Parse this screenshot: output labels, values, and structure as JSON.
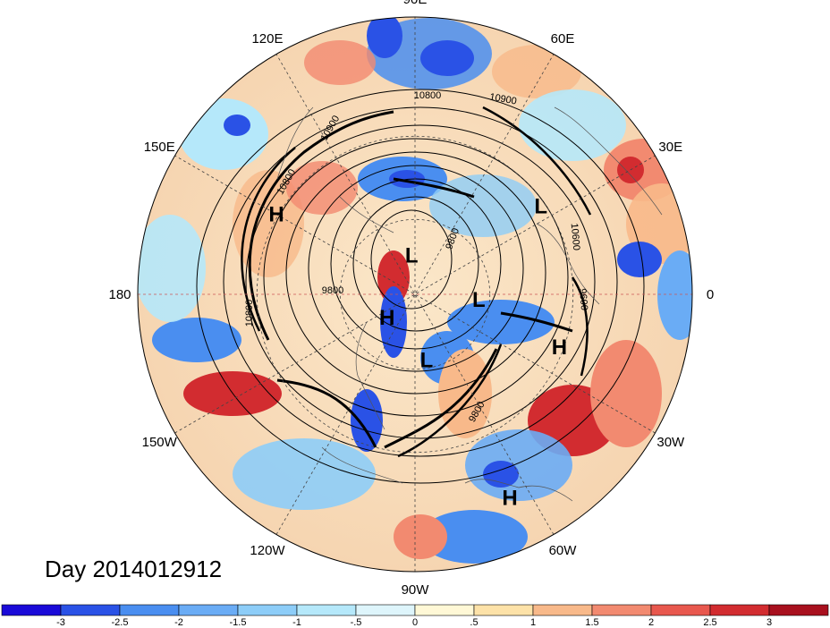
{
  "title": "Day 2014012912",
  "longitude_labels": [
    {
      "name": "lon-label-90e",
      "text": "90E",
      "angle": 90
    },
    {
      "name": "lon-label-60e",
      "text": "60E",
      "angle": 60
    },
    {
      "name": "lon-label-30e",
      "text": "30E",
      "angle": 30
    },
    {
      "name": "lon-label-0",
      "text": "0",
      "angle": 0
    },
    {
      "name": "lon-label-30w",
      "text": "30W",
      "angle": -30
    },
    {
      "name": "lon-label-60w",
      "text": "60W",
      "angle": -60
    },
    {
      "name": "lon-label-90w",
      "text": "90W",
      "angle": -90
    },
    {
      "name": "lon-label-120w",
      "text": "120W",
      "angle": -120
    },
    {
      "name": "lon-label-150w",
      "text": "150W",
      "angle": -150
    },
    {
      "name": "lon-label-180",
      "text": "180",
      "angle": 180
    },
    {
      "name": "lon-label-150e",
      "text": "150E",
      "angle": 150
    },
    {
      "name": "lon-label-120e",
      "text": "120E",
      "angle": 120
    }
  ],
  "pressure_centers": [
    {
      "text": "H",
      "lon": 150,
      "lat": 30
    },
    {
      "text": "L",
      "lon": 35,
      "lat": 32
    },
    {
      "text": "L",
      "lon": 95,
      "lat": 74
    },
    {
      "text": "H",
      "lon": -20,
      "lat": 32
    },
    {
      "text": "L",
      "lon": -5,
      "lat": 64
    },
    {
      "text": "H",
      "lon": -65,
      "lat": 12
    },
    {
      "text": "L",
      "lon": -80,
      "lat": 63
    },
    {
      "text": "H",
      "lon": -140,
      "lat": 75
    }
  ],
  "contour_labels": [
    "10800",
    "10900",
    "10900",
    "10800",
    "9800",
    "9800",
    "10600",
    "9600",
    "10800",
    "9800"
  ],
  "colorbar": {
    "colors": [
      "#1a0ad8",
      "#2a52e6",
      "#4a8ef0",
      "#6aacf5",
      "#8dcdf8",
      "#b5e8fa",
      "#def5fb",
      "#fff8d6",
      "#fde2a8",
      "#f8b98a",
      "#f28a70",
      "#e8584e",
      "#d22c30",
      "#a8101e"
    ],
    "ticks": [
      "-3",
      "-2.5",
      "-2",
      "-1.5",
      "-1",
      "-.5",
      "0",
      ".5",
      "1",
      "1.5",
      "2",
      "2.5",
      "3"
    ]
  }
}
